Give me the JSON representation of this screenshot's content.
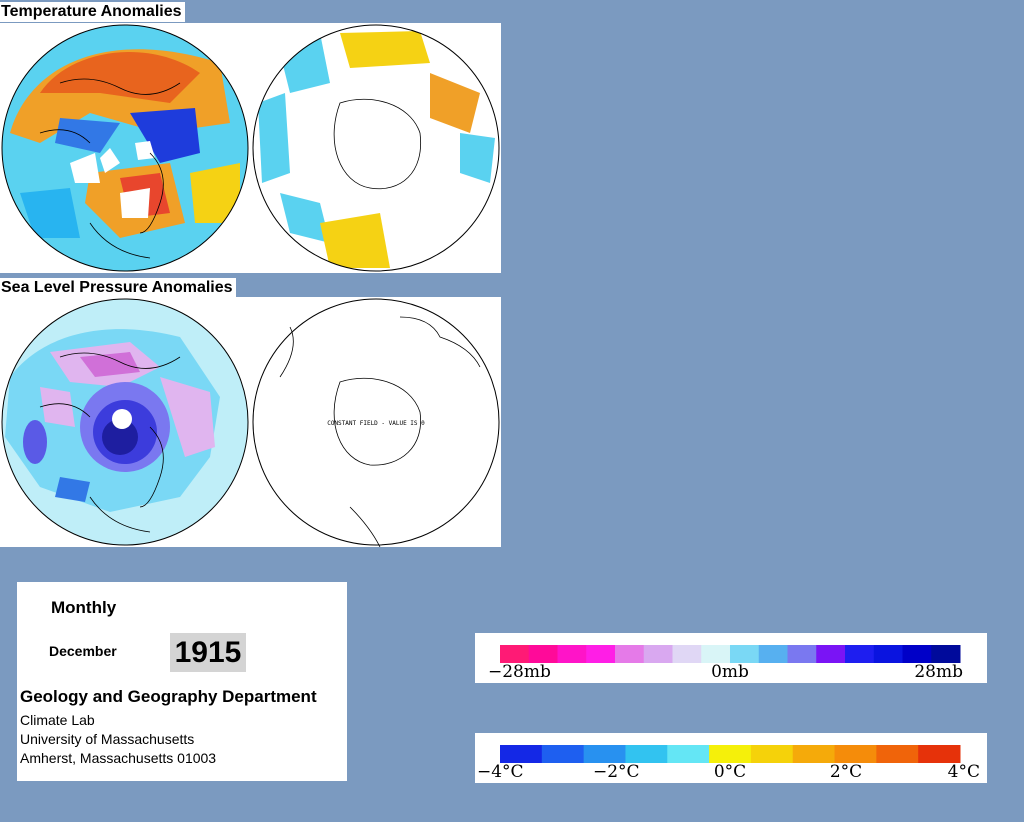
{
  "temperature": {
    "title": "Temperature Anomalies"
  },
  "pressure": {
    "title": "Sea Level Pressure Anomalies",
    "southern_note": "CONSTANT FIELD - VALUE IS 0"
  },
  "info": {
    "mode": "Monthly",
    "month": "December",
    "year": "1915",
    "department": "Geology and Geography Department",
    "lab": "Climate Lab",
    "university": "University of Massachusetts",
    "address": "Amherst, Massachusetts 01003"
  },
  "pressure_legend": {
    "colors": [
      "#ff1a75",
      "#ff0a99",
      "#ff14c8",
      "#ff1ee6",
      "#e57ae8",
      "#d9a8f0",
      "#e0d7f5",
      "#d9f5f7",
      "#7ad8f5",
      "#57b0f0",
      "#7a78f0",
      "#7a14f5",
      "#1e1ef0",
      "#0a14e0",
      "#0000c8",
      "#000a9b"
    ],
    "labels": [
      "−28mb",
      "0mb",
      "28mb"
    ]
  },
  "temperature_legend": {
    "colors": [
      "#1428e6",
      "#1e5ff0",
      "#2891f0",
      "#32c3f0",
      "#64e6f5",
      "#f5f00a",
      "#f5d20a",
      "#f5aa0a",
      "#f58c0a",
      "#f0640a",
      "#e6320a"
    ],
    "labels": [
      "−4°C",
      "−2°C",
      "0°C",
      "2°C",
      "4°C"
    ]
  },
  "colors": {
    "background": "#7b9ac0",
    "warm": "#e8641e",
    "cold": "#1e3cdc",
    "neutral": "#5ad2f0"
  }
}
